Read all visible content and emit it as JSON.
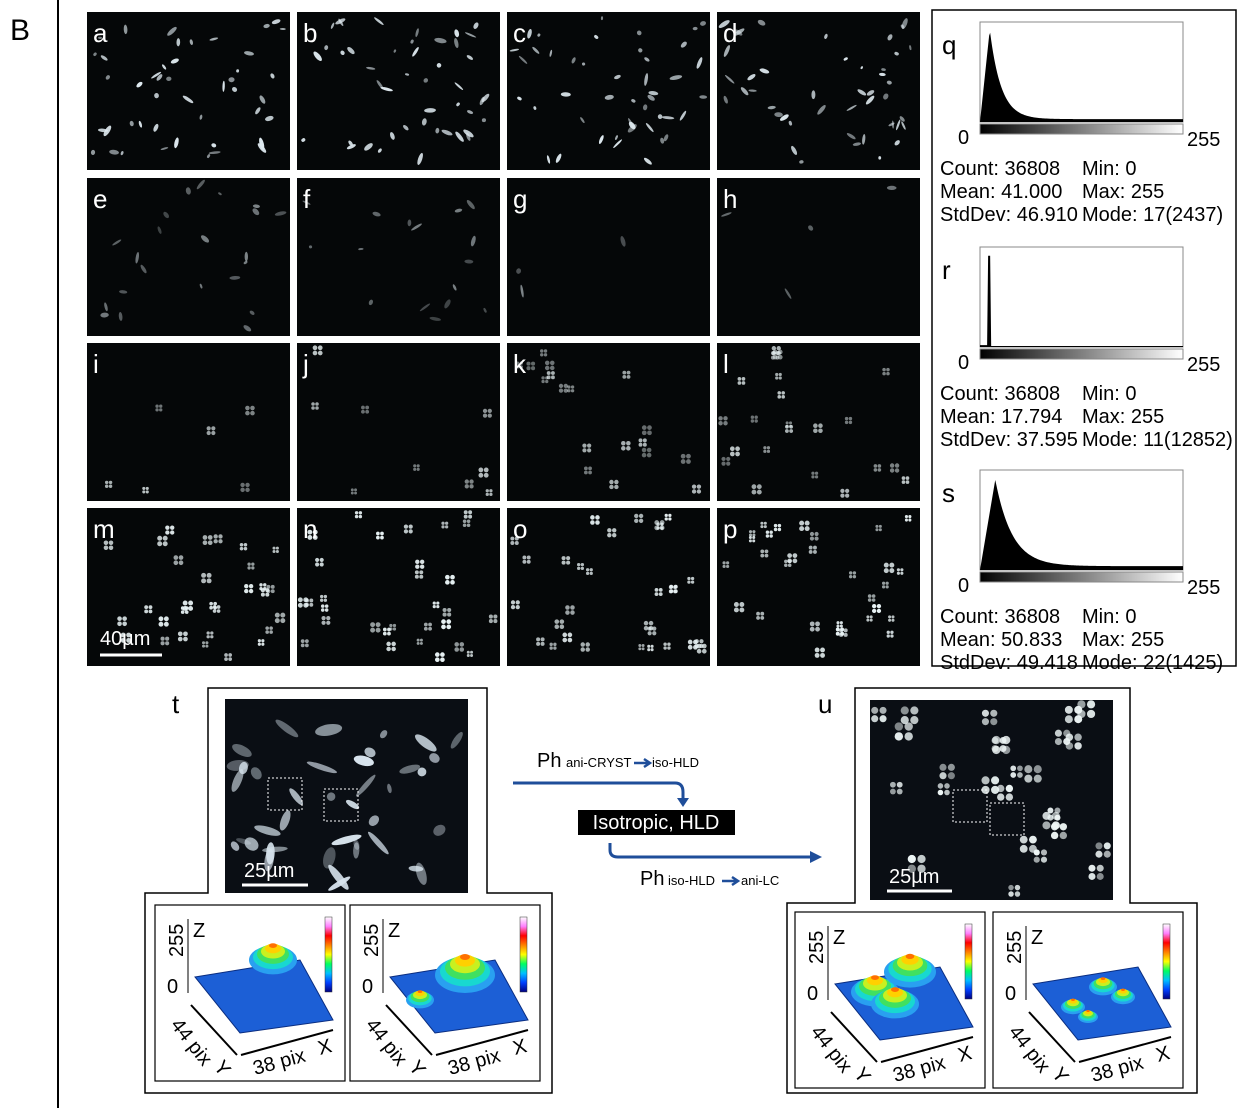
{
  "panel_label": "B",
  "micrographs": {
    "labels": [
      "a",
      "b",
      "c",
      "d",
      "e",
      "f",
      "g",
      "h",
      "i",
      "j",
      "k",
      "l",
      "m",
      "n",
      "o",
      "p"
    ],
    "scale_bar": "40µm"
  },
  "histograms": [
    {
      "label": "q",
      "axis_min": "0",
      "axis_max": "255",
      "stats": [
        [
          "Count: 36808",
          "Min: 0"
        ],
        [
          "Mean: 41.000",
          "Max: 255"
        ],
        [
          "StdDev: 46.910",
          "Mode: 17(2437)"
        ]
      ]
    },
    {
      "label": "r",
      "axis_min": "0",
      "axis_max": "255",
      "stats": [
        [
          "Count: 36808",
          "Min: 0"
        ],
        [
          "Mean: 17.794",
          "Max: 255"
        ],
        [
          "StdDev: 37.595",
          "Mode: 11(12852)"
        ]
      ]
    },
    {
      "label": "s",
      "axis_min": "0",
      "axis_max": "255",
      "stats": [
        [
          "Count: 36808",
          "Min: 0"
        ],
        [
          "Mean: 50.833",
          "Max: 255"
        ],
        [
          "StdDev: 49.418",
          "Mode: 22(1425)"
        ]
      ]
    }
  ],
  "insets": [
    {
      "label": "t",
      "scale_bar": "25µm",
      "plots": [
        {
          "z_max": "255",
          "z_axis": "Z",
          "z_min": "0",
          "y_label": "44 pix",
          "y_axis": "Y",
          "x_label": "38 pix",
          "x_axis": "X"
        },
        {
          "z_max": "255",
          "z_axis": "Z",
          "z_min": "0",
          "y_label": "44 pix",
          "y_axis": "Y",
          "x_label": "38 pix",
          "x_axis": "X"
        }
      ]
    },
    {
      "label": "u",
      "scale_bar": "25µm",
      "plots": [
        {
          "z_max": "255",
          "z_axis": "Z",
          "z_min": "0",
          "y_label": "44 pix",
          "y_axis": "Y",
          "x_label": "38 pix",
          "x_axis": "X"
        },
        {
          "z_max": "255",
          "z_axis": "Z",
          "z_min": "0",
          "y_label": "44 pix",
          "y_axis": "Y",
          "x_label": "38 pix",
          "x_axis": "X"
        }
      ]
    }
  ],
  "scheme": {
    "step1": {
      "prefix": "Ph",
      "from": "ani-CRYST",
      "to": "iso-HLD"
    },
    "box": "Isotropic, HLD",
    "step2": {
      "prefix": "Ph",
      "from": "iso-HLD",
      "to": "ani-LC"
    }
  }
}
